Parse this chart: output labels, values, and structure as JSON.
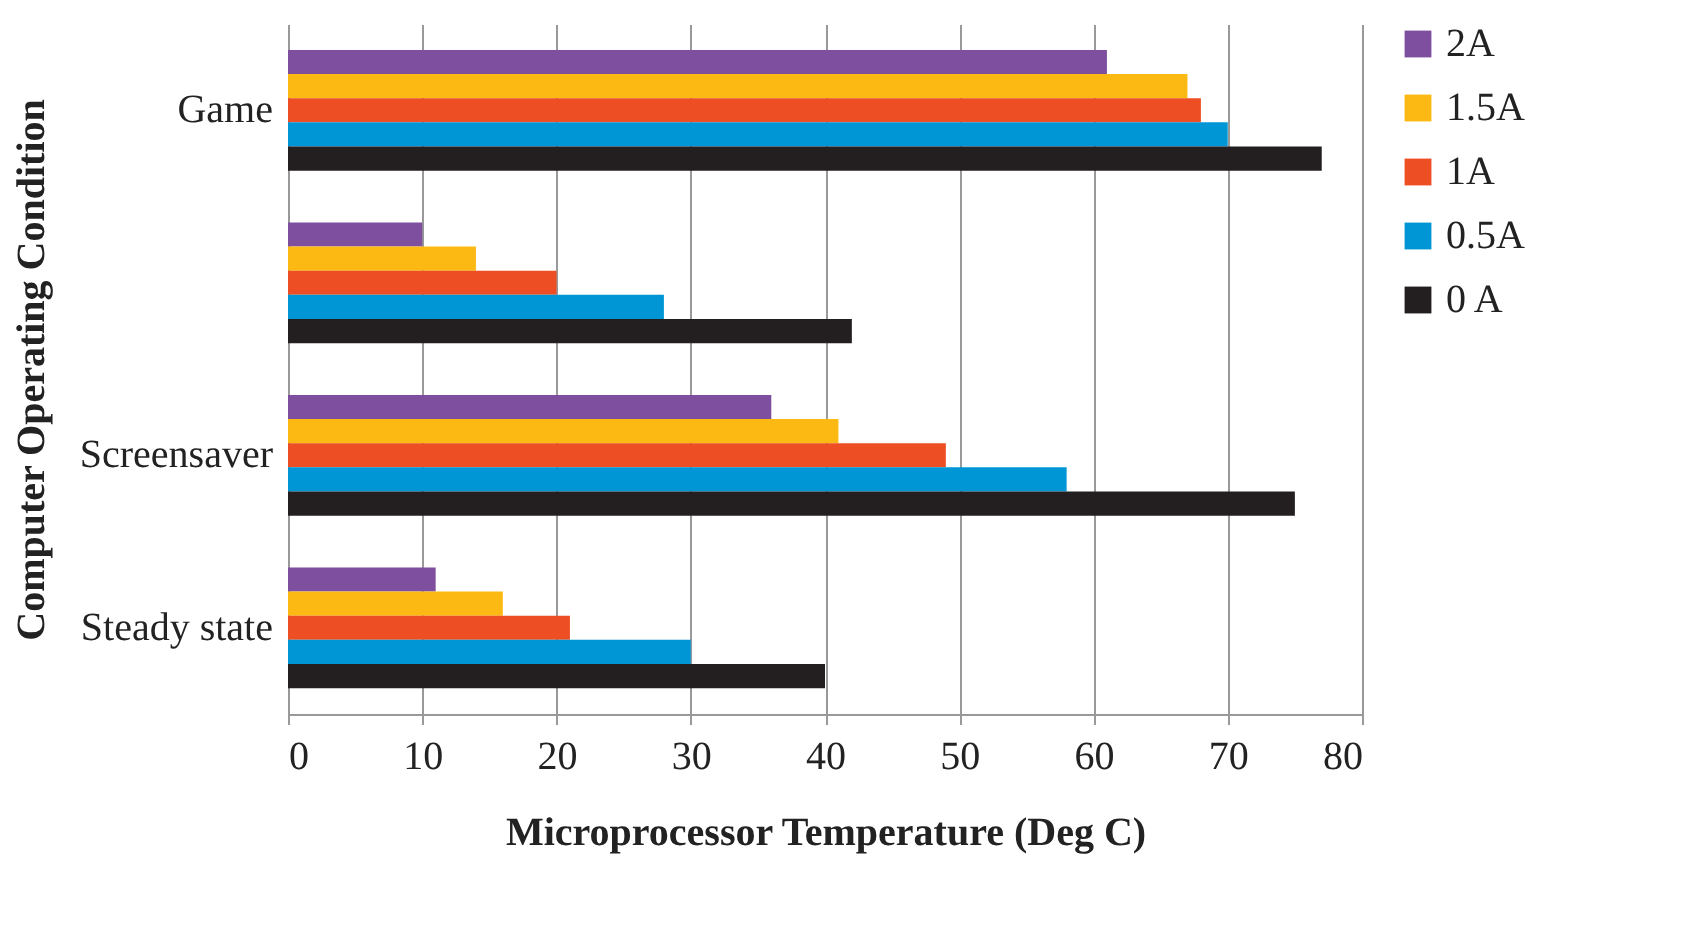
{
  "chart_data": {
    "type": "bar",
    "orientation": "horizontal",
    "xlabel": "Microprocessor Temperature (Deg C)",
    "ylabel": "Computer Operating Condition",
    "categories": [
      "Game",
      null,
      "Screensaver",
      "Steady state"
    ],
    "series": [
      {
        "name": "2A",
        "color": "#7f4f9f",
        "values": [
          61,
          10,
          36,
          11
        ]
      },
      {
        "name": "1.5A",
        "color": "#fdb913",
        "values": [
          67,
          14,
          41,
          16
        ]
      },
      {
        "name": "1A",
        "color": "#ee4e23",
        "values": [
          68,
          20,
          49,
          21
        ]
      },
      {
        "name": "0.5A",
        "color": "#0096d6",
        "values": [
          70,
          28,
          58,
          30
        ]
      },
      {
        "name": "0 A",
        "color": "#231f20",
        "values": [
          77,
          42,
          75,
          40
        ]
      }
    ],
    "xlim": [
      0,
      80
    ],
    "xticks": [
      0,
      10,
      20,
      30,
      40,
      50,
      60,
      70,
      80
    ],
    "grid": "x",
    "legend": "right"
  }
}
